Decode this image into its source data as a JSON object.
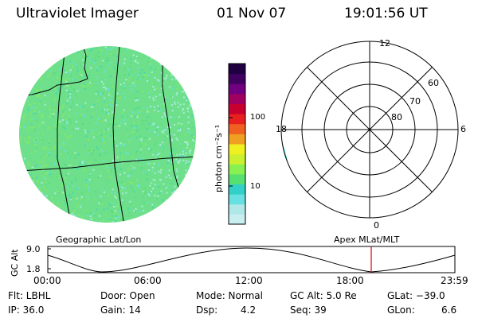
{
  "header": {
    "title": "Ultraviolet Imager",
    "date": "01 Nov 07",
    "time": "19:01:56 UT"
  },
  "geo_panel": {
    "label": "Geographic Lat/Lon"
  },
  "colorbar": {
    "unit_label": "photon cm⁻²s⁻¹",
    "ticks": [
      "100",
      "10"
    ],
    "colors": [
      "#c8eef0",
      "#b0e8ea",
      "#66e0e0",
      "#33d0c8",
      "#55e070",
      "#88f050",
      "#ccf030",
      "#f0f020",
      "#f0a020",
      "#f06020",
      "#e82020",
      "#c80030",
      "#a00060",
      "#700080",
      "#400060",
      "#200040"
    ]
  },
  "polar_panel": {
    "label": "Apex MLat/MLT",
    "mlt_labels": [
      "12",
      "6",
      "0",
      "18"
    ],
    "lat_labels": [
      "60",
      "70",
      "80"
    ]
  },
  "altitude_plot": {
    "y_title": "GC Alt",
    "y_ticks": [
      "9.0",
      "1.8"
    ],
    "x_ticks": [
      "00:00",
      "06:00",
      "12:00",
      "18:00",
      "23:59"
    ],
    "current_marker_color": "#e00000"
  },
  "footer": {
    "row1": {
      "flt": "Flt: LBHL",
      "door": "Door: Open",
      "mode": "Mode: Normal",
      "gcalt": "GC Alt: 5.0 Re",
      "glat": "GLat: −39.0"
    },
    "row2": {
      "ip": "IP: 36.0",
      "gain": "Gain: 14",
      "dsp_label": "Dsp:",
      "dsp_value": "4.2",
      "seq": "Seq: 39",
      "glon_label": "GLon:",
      "glon_value": "6.6"
    }
  }
}
